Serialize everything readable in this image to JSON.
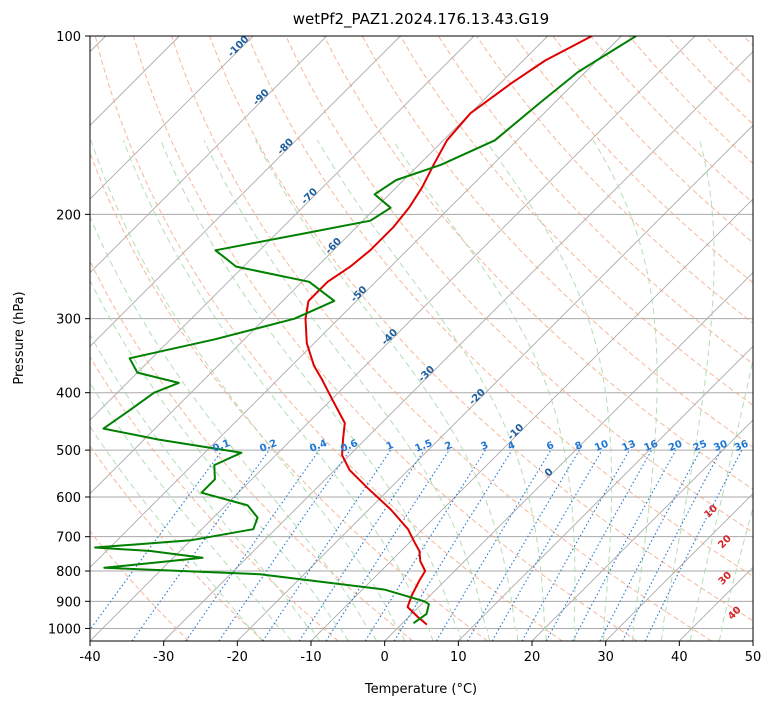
{
  "chart_data": {
    "type": "line",
    "subtype": "skew-t log-p",
    "title": "wetPf2_PAZ1.2024.176.13.43.G19",
    "xlabel": "Temperature (°C)",
    "ylabel": "Pressure (hPa)",
    "xlim": [
      -40,
      50
    ],
    "ylim": [
      1050,
      100
    ],
    "y_scale": "log",
    "x_ticks": [
      -40,
      -30,
      -20,
      -10,
      0,
      10,
      20,
      30,
      40,
      50
    ],
    "y_ticks": [
      100,
      200,
      300,
      400,
      500,
      600,
      700,
      800,
      900,
      1000
    ],
    "grid": true,
    "colors": {
      "temperature": "#e00000",
      "dewpoint": "#008000",
      "isotherm": "#aaaaaa",
      "isobar": "#aaaaaa",
      "dry_adiabat": "#f4a582",
      "moist_adiabat": "#a6d8a6",
      "mixing_ratio": "#1f77d4",
      "temp_label": "#1f5fa0",
      "moist_label": "#d62728"
    },
    "isotherm_labels": [
      {
        "t": -100,
        "p": 105
      },
      {
        "t": -90,
        "p": 128
      },
      {
        "t": -80,
        "p": 155
      },
      {
        "t": -70,
        "p": 188
      },
      {
        "t": -60,
        "p": 228
      },
      {
        "t": -50,
        "p": 275
      },
      {
        "t": -40,
        "p": 325
      },
      {
        "t": -30,
        "p": 375
      },
      {
        "t": -20,
        "p": 410
      },
      {
        "t": -10,
        "p": 470
      },
      {
        "t": 0,
        "p": 550
      }
    ],
    "mixing_ratio_labels": [
      "0.1",
      "0.2",
      "0.4",
      "0.6",
      "1",
      "1.5",
      "2",
      "3",
      "4",
      "6",
      "8",
      "10",
      "13",
      "16",
      "20",
      "25",
      "30",
      "36"
    ],
    "mixing_ratio_values": [
      0.1,
      0.2,
      0.4,
      0.6,
      1,
      1.5,
      2,
      3,
      4,
      6,
      8,
      10,
      13,
      16,
      20,
      25,
      30,
      36
    ],
    "moist_labels": [
      {
        "text": "10",
        "t": 30,
        "p": 640
      },
      {
        "text": "20",
        "t": 36,
        "p": 720
      },
      {
        "text": "30",
        "t": 41,
        "p": 830
      },
      {
        "text": "40",
        "t": 47,
        "p": 950
      }
    ],
    "series": [
      {
        "name": "temperature",
        "points": [
          [
            -54,
            100
          ],
          [
            -57,
            110
          ],
          [
            -58.5,
            120
          ],
          [
            -60,
            135
          ],
          [
            -59.5,
            150
          ],
          [
            -58,
            165
          ],
          [
            -56.5,
            180
          ],
          [
            -55.5,
            195
          ],
          [
            -55,
            210
          ],
          [
            -55,
            230
          ],
          [
            -55.5,
            245
          ],
          [
            -56.5,
            260
          ],
          [
            -56.5,
            280
          ],
          [
            -54.5,
            300
          ],
          [
            -51,
            330
          ],
          [
            -47,
            360
          ],
          [
            -44,
            380
          ],
          [
            -40,
            410
          ],
          [
            -35,
            450
          ],
          [
            -33,
            480
          ],
          [
            -31,
            510
          ],
          [
            -28,
            540
          ],
          [
            -23,
            580
          ],
          [
            -17,
            630
          ],
          [
            -12,
            680
          ],
          [
            -9,
            720
          ],
          [
            -7.5,
            740
          ],
          [
            -6,
            770
          ],
          [
            -4,
            800
          ],
          [
            -3.5,
            830
          ],
          [
            -2.5,
            880
          ],
          [
            -1.5,
            920
          ],
          [
            1.5,
            960
          ],
          [
            3.5,
            985
          ]
        ]
      },
      {
        "name": "dewpoint",
        "points": [
          [
            -48,
            100
          ],
          [
            -51,
            115
          ],
          [
            -52,
            130
          ],
          [
            -53,
            150
          ],
          [
            -57,
            165
          ],
          [
            -61,
            175
          ],
          [
            -62,
            185
          ],
          [
            -58,
            195
          ],
          [
            -59,
            205
          ],
          [
            -66,
            215
          ],
          [
            -76,
            230
          ],
          [
            -71,
            245
          ],
          [
            -59,
            260
          ],
          [
            -53,
            280
          ],
          [
            -56,
            300
          ],
          [
            -64,
            325
          ],
          [
            -73,
            350
          ],
          [
            -70,
            370
          ],
          [
            -63,
            385
          ],
          [
            -65,
            400
          ],
          [
            -66,
            430
          ],
          [
            -67,
            460
          ],
          [
            -58,
            480
          ],
          [
            -45,
            505
          ],
          [
            -47,
            530
          ],
          [
            -45,
            560
          ],
          [
            -45,
            590
          ],
          [
            -37,
            620
          ],
          [
            -34,
            650
          ],
          [
            -33,
            680
          ],
          [
            -40,
            710
          ],
          [
            -52,
            730
          ],
          [
            -44,
            740
          ],
          [
            -36,
            760
          ],
          [
            -48,
            790
          ],
          [
            -26,
            810
          ],
          [
            -7,
            860
          ],
          [
            0,
            900
          ],
          [
            1,
            910
          ],
          [
            2,
            945
          ],
          [
            1.5,
            980
          ]
        ]
      }
    ]
  }
}
